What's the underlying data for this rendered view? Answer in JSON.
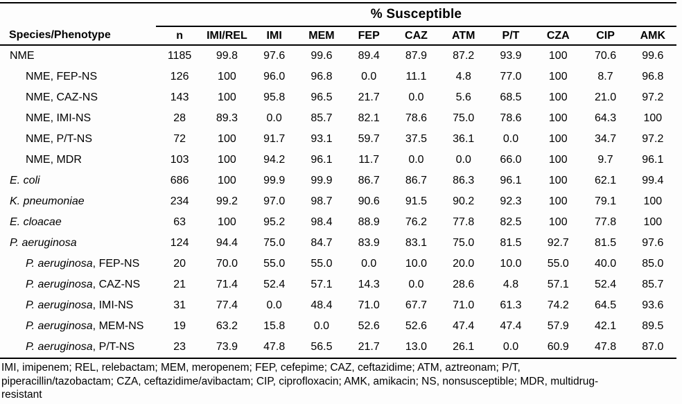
{
  "table": {
    "span_header": "% Susceptible",
    "columns": [
      "Species/Phenotype",
      "n",
      "IMI/REL",
      "IMI",
      "MEM",
      "FEP",
      "CAZ",
      "ATM",
      "P/T",
      "CZA",
      "CIP",
      "AMK"
    ],
    "rows": [
      {
        "species": "NME",
        "suffix": "",
        "italic": false,
        "indent": false,
        "values": [
          "1185",
          "99.8",
          "97.6",
          "99.6",
          "89.4",
          "87.9",
          "87.2",
          "93.9",
          "100",
          "70.6",
          "99.6"
        ]
      },
      {
        "species": "NME",
        "suffix": ", FEP-NS",
        "italic": false,
        "indent": true,
        "values": [
          "126",
          "100",
          "96.0",
          "96.8",
          "0.0",
          "11.1",
          "4.8",
          "77.0",
          "100",
          "8.7",
          "96.8"
        ]
      },
      {
        "species": "NME",
        "suffix": ", CAZ-NS",
        "italic": false,
        "indent": true,
        "values": [
          "143",
          "100",
          "95.8",
          "96.5",
          "21.7",
          "0.0",
          "5.6",
          "68.5",
          "100",
          "21.0",
          "97.2"
        ]
      },
      {
        "species": "NME",
        "suffix": ", IMI-NS",
        "italic": false,
        "indent": true,
        "values": [
          "28",
          "89.3",
          "0.0",
          "85.7",
          "82.1",
          "78.6",
          "75.0",
          "78.6",
          "100",
          "64.3",
          "100"
        ]
      },
      {
        "species": "NME",
        "suffix": ", P/T-NS",
        "italic": false,
        "indent": true,
        "values": [
          "72",
          "100",
          "91.7",
          "93.1",
          "59.7",
          "37.5",
          "36.1",
          "0.0",
          "100",
          "34.7",
          "97.2"
        ]
      },
      {
        "species": "NME",
        "suffix": ", MDR",
        "italic": false,
        "indent": true,
        "values": [
          "103",
          "100",
          "94.2",
          "96.1",
          "11.7",
          "0.0",
          "0.0",
          "66.0",
          "100",
          "9.7",
          "96.1"
        ]
      },
      {
        "species": "E. coli",
        "suffix": "",
        "italic": true,
        "indent": false,
        "values": [
          "686",
          "100",
          "99.9",
          "99.9",
          "86.7",
          "86.7",
          "86.3",
          "96.1",
          "100",
          "62.1",
          "99.4"
        ]
      },
      {
        "species": "K. pneumoniae",
        "suffix": "",
        "italic": true,
        "indent": false,
        "values": [
          "234",
          "99.2",
          "97.0",
          "98.7",
          "90.6",
          "91.5",
          "90.2",
          "92.3",
          "100",
          "79.1",
          "100"
        ]
      },
      {
        "species": "E. cloacae",
        "suffix": "",
        "italic": true,
        "indent": false,
        "values": [
          "63",
          "100",
          "95.2",
          "98.4",
          "88.9",
          "76.2",
          "77.8",
          "82.5",
          "100",
          "77.8",
          "100"
        ]
      },
      {
        "species": "P. aeruginosa",
        "suffix": "",
        "italic": true,
        "indent": false,
        "values": [
          "124",
          "94.4",
          "75.0",
          "84.7",
          "83.9",
          "83.1",
          "75.0",
          "81.5",
          "92.7",
          "81.5",
          "97.6"
        ]
      },
      {
        "species": "P. aeruginosa",
        "suffix": ", FEP-NS",
        "italic": true,
        "indent": true,
        "values": [
          "20",
          "70.0",
          "55.0",
          "55.0",
          "0.0",
          "10.0",
          "20.0",
          "10.0",
          "55.0",
          "40.0",
          "85.0"
        ]
      },
      {
        "species": "P. aeruginosa",
        "suffix": ", CAZ-NS",
        "italic": true,
        "indent": true,
        "values": [
          "21",
          "71.4",
          "52.4",
          "57.1",
          "14.3",
          "0.0",
          "28.6",
          "4.8",
          "57.1",
          "52.4",
          "85.7"
        ]
      },
      {
        "species": "P. aeruginosa",
        "suffix": ", IMI-NS",
        "italic": true,
        "indent": true,
        "values": [
          "31",
          "77.4",
          "0.0",
          "48.4",
          "71.0",
          "67.7",
          "71.0",
          "61.3",
          "74.2",
          "64.5",
          "93.6"
        ]
      },
      {
        "species": "P. aeruginosa",
        "suffix": ", MEM-NS",
        "italic": true,
        "indent": true,
        "values": [
          "19",
          "63.2",
          "15.8",
          "0.0",
          "52.6",
          "52.6",
          "47.4",
          "47.4",
          "57.9",
          "42.1",
          "89.5"
        ]
      },
      {
        "species": "P. aeruginosa",
        "suffix": ", P/T-NS",
        "italic": true,
        "indent": true,
        "values": [
          "23",
          "73.9",
          "47.8",
          "56.5",
          "21.7",
          "13.0",
          "26.1",
          "0.0",
          "60.9",
          "47.8",
          "87.0"
        ]
      }
    ]
  },
  "footnote": {
    "lines": [
      "IMI, imipenem; REL, relebactam; MEM, meropenem; FEP, cefepime; CAZ, ceftazidime; ATM, aztreonam; P/T,",
      "piperacillin/tazobactam; CZA, ceftazidime/avibactam; CIP, ciprofloxacin; AMK, amikacin; NS, nonsusceptible; MDR, multidrug-",
      "resistant"
    ]
  },
  "colors": {
    "text": "#000000",
    "line": "#000000",
    "background": "#fdfdfd"
  }
}
